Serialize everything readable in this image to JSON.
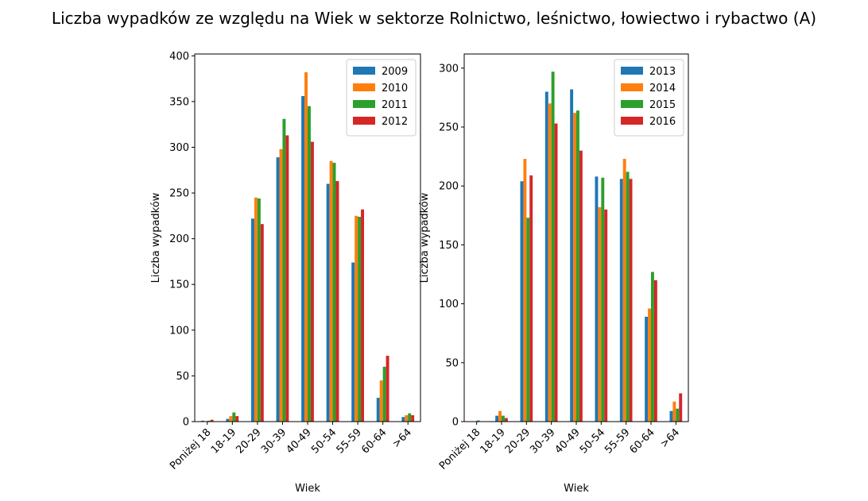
{
  "figure": {
    "title": "Liczba wypadków ze względu na Wiek w sektorze Rolnictwo, leśnictwo, łowiectwo i rybactwo (A)"
  },
  "colors": {
    "blue": "#1f77b4",
    "orange": "#ff7f0e",
    "green": "#2ca02c",
    "red": "#d62728"
  },
  "chart_data": [
    {
      "type": "bar",
      "title": "",
      "xlabel": "Wiek",
      "ylabel": "Liczba wypadków",
      "ylim": [
        0,
        402
      ],
      "yticks": [
        0,
        50,
        100,
        150,
        200,
        250,
        300,
        350,
        400
      ],
      "grid": false,
      "legend_position": "top-right",
      "categories": [
        "Poniżej 18",
        "18-19",
        "20-29",
        "30-39",
        "40-49",
        "50-54",
        "55-59",
        "60-64",
        ">64"
      ],
      "series": [
        {
          "name": "2009",
          "color": "#1f77b4",
          "values": [
            1,
            3,
            222,
            289,
            356,
            260,
            174,
            26,
            5
          ]
        },
        {
          "name": "2010",
          "color": "#ff7f0e",
          "values": [
            0,
            6,
            245,
            298,
            382,
            285,
            225,
            45,
            7
          ]
        },
        {
          "name": "2011",
          "color": "#2ca02c",
          "values": [
            1,
            10,
            244,
            331,
            345,
            283,
            224,
            60,
            9
          ]
        },
        {
          "name": "2012",
          "color": "#d62728",
          "values": [
            2,
            6,
            216,
            313,
            306,
            263,
            232,
            72,
            7
          ]
        }
      ]
    },
    {
      "type": "bar",
      "title": "",
      "xlabel": "Wiek",
      "ylabel": "Liczba wypadków",
      "ylim": [
        0,
        312
      ],
      "yticks": [
        0,
        50,
        100,
        150,
        200,
        250,
        300
      ],
      "grid": false,
      "legend_position": "top-right",
      "categories": [
        "Poniżej 18",
        "18-19",
        "20-29",
        "30-39",
        "40-49",
        "50-54",
        "55-59",
        "60-64",
        ">64"
      ],
      "series": [
        {
          "name": "2013",
          "color": "#1f77b4",
          "values": [
            0,
            5,
            204,
            280,
            282,
            208,
            206,
            89,
            9
          ]
        },
        {
          "name": "2014",
          "color": "#ff7f0e",
          "values": [
            0,
            9,
            223,
            270,
            262,
            182,
            223,
            96,
            17
          ]
        },
        {
          "name": "2015",
          "color": "#2ca02c",
          "values": [
            1,
            5,
            173,
            297,
            264,
            207,
            212,
            127,
            11
          ]
        },
        {
          "name": "2016",
          "color": "#d62728",
          "values": [
            0,
            3,
            209,
            253,
            230,
            180,
            206,
            120,
            24
          ]
        }
      ]
    }
  ]
}
